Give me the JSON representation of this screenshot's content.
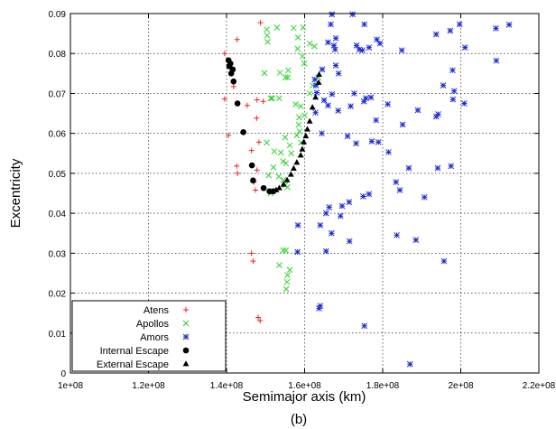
{
  "chart_data": {
    "type": "scatter",
    "title": "",
    "caption": "(b)",
    "xlabel": "Semimajor axis (km)",
    "ylabel": "Excentricity",
    "xlim": [
      100000000,
      220000000
    ],
    "ylim": [
      0,
      0.09
    ],
    "xticks": [
      100000000,
      120000000,
      140000000,
      160000000,
      180000000,
      200000000,
      220000000
    ],
    "xtick_labels": [
      "1e+08",
      "1.2e+08",
      "1.4e+08",
      "1.6e+08",
      "1.8e+08",
      "2e+08",
      "2.2e+08"
    ],
    "yticks": [
      0,
      0.01,
      0.02,
      0.03,
      0.04,
      0.05,
      0.06,
      0.07,
      0.08,
      0.09
    ],
    "ytick_labels": [
      "0",
      "0.01",
      "0.02",
      "0.03",
      "0.04",
      "0.05",
      "0.06",
      "0.07",
      "0.08",
      "0.09"
    ],
    "grid": true,
    "legend_position": "bottom-left",
    "series": [
      {
        "name": "Atens",
        "marker": "plus",
        "color": "#e8242b",
        "points": [
          [
            148700000.0,
            0.0877
          ],
          [
            142700000.0,
            0.0835
          ],
          [
            139500000.0,
            0.08
          ],
          [
            141800000.0,
            0.0717
          ],
          [
            139500000.0,
            0.0686
          ],
          [
            145300000.0,
            0.067
          ],
          [
            147800000.0,
            0.0684
          ],
          [
            149400000.0,
            0.068
          ],
          [
            147700000.0,
            0.0638
          ],
          [
            140500000.0,
            0.0595
          ],
          [
            148300000.0,
            0.0578
          ],
          [
            142600000.0,
            0.0518
          ],
          [
            146400000.0,
            0.0557
          ],
          [
            147800000.0,
            0.0508
          ],
          [
            142800000.0,
            0.05
          ],
          [
            147000000.0,
            0.0478
          ],
          [
            147400000.0,
            0.0458
          ],
          [
            146400000.0,
            0.03
          ],
          [
            146800000.0,
            0.028
          ],
          [
            148100000.0,
            0.0139
          ],
          [
            148600000.0,
            0.0131
          ]
        ]
      },
      {
        "name": "Apollos",
        "marker": "x",
        "color": "#2bd42b",
        "points": [
          [
            150300000.0,
            0.086
          ],
          [
            150400000.0,
            0.0845
          ],
          [
            150500000.0,
            0.0829
          ],
          [
            152900000.0,
            0.0865
          ],
          [
            157200000.0,
            0.0864
          ],
          [
            159600000.0,
            0.0865
          ],
          [
            158300000.0,
            0.084
          ],
          [
            161300000.0,
            0.0825
          ],
          [
            162500000.0,
            0.0818
          ],
          [
            158200000.0,
            0.0812
          ],
          [
            159400000.0,
            0.0793
          ],
          [
            159900000.0,
            0.0775
          ],
          [
            155800000.0,
            0.0758
          ],
          [
            153700000.0,
            0.0752
          ],
          [
            149700000.0,
            0.0751
          ],
          [
            155100000.0,
            0.074
          ],
          [
            155700000.0,
            0.074
          ],
          [
            163500000.0,
            0.074
          ],
          [
            161300000.0,
            0.07
          ],
          [
            162100000.0,
            0.072
          ],
          [
            151300000.0,
            0.0688
          ],
          [
            151700000.0,
            0.0688
          ],
          [
            153500000.0,
            0.0688
          ],
          [
            157700000.0,
            0.0673
          ],
          [
            159000000.0,
            0.0668
          ],
          [
            158600000.0,
            0.064
          ],
          [
            160000000.0,
            0.0645
          ],
          [
            158500000.0,
            0.0622
          ],
          [
            158700000.0,
            0.0605
          ],
          [
            158000000.0,
            0.0595
          ],
          [
            155000000.0,
            0.059
          ],
          [
            150300000.0,
            0.0577
          ],
          [
            159100000.0,
            0.0577
          ],
          [
            156200000.0,
            0.057
          ],
          [
            152200000.0,
            0.0555
          ],
          [
            153900000.0,
            0.0552
          ],
          [
            156600000.0,
            0.055
          ],
          [
            154500000.0,
            0.053
          ],
          [
            155200000.0,
            0.0525
          ],
          [
            152000000.0,
            0.0515
          ],
          [
            150800000.0,
            0.0495
          ],
          [
            153400000.0,
            0.0492
          ],
          [
            154500000.0,
            0.0483
          ],
          [
            155000000.0,
            0.047
          ],
          [
            155600000.0,
            0.0465
          ],
          [
            151300000.0,
            0.045
          ],
          [
            154500000.0,
            0.0307
          ],
          [
            155200000.0,
            0.0307
          ],
          [
            153500000.0,
            0.027
          ],
          [
            156200000.0,
            0.0258
          ],
          [
            155600000.0,
            0.0245
          ],
          [
            155500000.0,
            0.0228
          ],
          [
            155300000.0,
            0.021
          ]
        ]
      },
      {
        "name": "Amors",
        "marker": "star",
        "color": "#1f2fd6",
        "points": [
          [
            167000000.0,
            0.0898
          ],
          [
            172300000.0,
            0.0898
          ],
          [
            166700000.0,
            0.0873
          ],
          [
            175300000.0,
            0.0873
          ],
          [
            168000000.0,
            0.0838
          ],
          [
            166000000.0,
            0.0828
          ],
          [
            167500000.0,
            0.082
          ],
          [
            167800000.0,
            0.081
          ],
          [
            173300000.0,
            0.082
          ],
          [
            174000000.0,
            0.081
          ],
          [
            174800000.0,
            0.0808
          ],
          [
            176500000.0,
            0.0815
          ],
          [
            178500000.0,
            0.0835
          ],
          [
            179300000.0,
            0.0825
          ],
          [
            184900000.0,
            0.0808
          ],
          [
            193700000.0,
            0.0848
          ],
          [
            197300000.0,
            0.0857
          ],
          [
            199700000.0,
            0.0873
          ],
          [
            201100000.0,
            0.0815
          ],
          [
            209000000.0,
            0.0863
          ],
          [
            212400000.0,
            0.0872
          ],
          [
            209100000.0,
            0.0782
          ],
          [
            197900000.0,
            0.0758
          ],
          [
            195500000.0,
            0.072
          ],
          [
            198300000.0,
            0.0706
          ],
          [
            198000000.0,
            0.0685
          ],
          [
            200900000.0,
            0.0675
          ],
          [
            168000000.0,
            0.077
          ],
          [
            168700000.0,
            0.075
          ],
          [
            164500000.0,
            0.076
          ],
          [
            162600000.0,
            0.0735
          ],
          [
            162900000.0,
            0.072
          ],
          [
            163100000.0,
            0.0702
          ],
          [
            165000000.0,
            0.0683
          ],
          [
            167000000.0,
            0.0698
          ],
          [
            172700000.0,
            0.07
          ],
          [
            175700000.0,
            0.0688
          ],
          [
            177000000.0,
            0.069
          ],
          [
            166000000.0,
            0.067
          ],
          [
            162800000.0,
            0.0652
          ],
          [
            168600000.0,
            0.0657
          ],
          [
            171800000.0,
            0.0668
          ],
          [
            175200000.0,
            0.068
          ],
          [
            178300000.0,
            0.0633
          ],
          [
            181300000.0,
            0.0673
          ],
          [
            189000000.0,
            0.0658
          ],
          [
            193700000.0,
            0.0642
          ],
          [
            194200000.0,
            0.0648
          ],
          [
            185100000.0,
            0.0622
          ],
          [
            164400000.0,
            0.06
          ],
          [
            171000000.0,
            0.0593
          ],
          [
            173200000.0,
            0.0575
          ],
          [
            177200000.0,
            0.058
          ],
          [
            178900000.0,
            0.0578
          ],
          [
            181500000.0,
            0.0553
          ],
          [
            186700000.0,
            0.0513
          ],
          [
            194100000.0,
            0.0513
          ],
          [
            197500000.0,
            0.0518
          ],
          [
            183400000.0,
            0.0478
          ],
          [
            184400000.0,
            0.0458
          ],
          [
            190700000.0,
            0.044
          ],
          [
            175000000.0,
            0.0442
          ],
          [
            176500000.0,
            0.0448
          ],
          [
            171400000.0,
            0.0428
          ],
          [
            169600000.0,
            0.0418
          ],
          [
            166300000.0,
            0.0415
          ],
          [
            165500000.0,
            0.04
          ],
          [
            169200000.0,
            0.0393
          ],
          [
            164000000.0,
            0.037
          ],
          [
            158300000.0,
            0.037
          ],
          [
            166900000.0,
            0.035
          ],
          [
            171500000.0,
            0.033
          ],
          [
            183600000.0,
            0.0345
          ],
          [
            188500000.0,
            0.0333
          ],
          [
            158200000.0,
            0.0303
          ],
          [
            165500000.0,
            0.0305
          ],
          [
            195700000.0,
            0.028
          ],
          [
            164000000.0,
            0.0168
          ],
          [
            163700000.0,
            0.0162
          ],
          [
            175300000.0,
            0.0118
          ],
          [
            187000000.0,
            0.0022
          ]
        ]
      },
      {
        "name": "Internal Escape",
        "marker": "circle",
        "color": "#000000",
        "points": [
          [
            140500000.0,
            0.0783
          ],
          [
            141000000.0,
            0.0775
          ],
          [
            140700000.0,
            0.0768
          ],
          [
            141600000.0,
            0.076
          ],
          [
            141200000.0,
            0.075
          ],
          [
            141800000.0,
            0.073
          ],
          [
            142800000.0,
            0.0675
          ],
          [
            144300000.0,
            0.0603
          ],
          [
            146500000.0,
            0.052
          ],
          [
            146800000.0,
            0.0482
          ],
          [
            149500000.0,
            0.0463
          ],
          [
            151000000.0,
            0.0455
          ],
          [
            152000000.0,
            0.0455
          ]
        ]
      },
      {
        "name": "External Escape",
        "marker": "triangle",
        "color": "#000000",
        "points": [
          [
            152700000.0,
            0.0458
          ],
          [
            153500000.0,
            0.0463
          ],
          [
            154600000.0,
            0.0472
          ],
          [
            155500000.0,
            0.0483
          ],
          [
            156500000.0,
            0.0497
          ],
          [
            157200000.0,
            0.0512
          ],
          [
            158000000.0,
            0.0527
          ],
          [
            159000000.0,
            0.0545
          ],
          [
            159400000.0,
            0.056
          ],
          [
            159800000.0,
            0.0578
          ],
          [
            160300000.0,
            0.0593
          ],
          [
            160700000.0,
            0.061
          ],
          [
            161300000.0,
            0.063
          ],
          [
            162000000.0,
            0.0665
          ],
          [
            162800000.0,
            0.069
          ],
          [
            163600000.0,
            0.0727
          ],
          [
            163700000.0,
            0.0747
          ]
        ]
      }
    ]
  }
}
